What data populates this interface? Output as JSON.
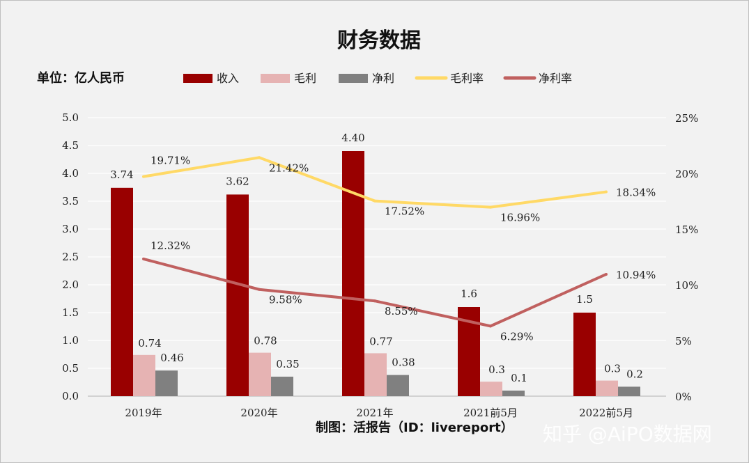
{
  "chart_data": {
    "type": "bar",
    "title": "财务数据",
    "unit_label": "单位：亿人民币",
    "source": "制图：活报告（ID：livereport）",
    "watermark": "知乎 @AiPO数据网",
    "categories": [
      "2019年",
      "2020年",
      "2021年",
      "2021前5月",
      "2022前5月"
    ],
    "y_left": {
      "range": [
        0,
        5
      ],
      "ticks": [
        "0.0",
        "0.5",
        "1.0",
        "1.5",
        "2.0",
        "2.5",
        "3.0",
        "3.5",
        "4.0",
        "4.5",
        "5.0"
      ]
    },
    "y_right": {
      "range": [
        0,
        25
      ],
      "ticks": [
        "0%",
        "5%",
        "10%",
        "15%",
        "20%",
        "25%"
      ]
    },
    "grid": true,
    "legend_position": "top",
    "series": [
      {
        "name": "收入",
        "type": "bar",
        "color": "#990000",
        "values": [
          3.74,
          3.62,
          4.4,
          1.6,
          1.5
        ],
        "labels": [
          "3.74",
          "3.62",
          "4.40",
          "1.6",
          "1.5"
        ]
      },
      {
        "name": "毛利",
        "type": "bar",
        "color": "#e6b3b3",
        "values": [
          0.74,
          0.78,
          0.77,
          0.26,
          0.28
        ],
        "labels": [
          "0.74",
          "0.78",
          "0.77",
          "0.3",
          "0.3"
        ]
      },
      {
        "name": "净利",
        "type": "bar",
        "color": "#808080",
        "values": [
          0.46,
          0.35,
          0.38,
          0.1,
          0.17
        ],
        "labels": [
          "0.46",
          "0.35",
          "0.38",
          "0.1",
          "0.2"
        ]
      },
      {
        "name": "毛利率",
        "type": "line",
        "axis": "right",
        "color": "#ffd966",
        "values": [
          19.71,
          21.42,
          17.52,
          16.96,
          18.34
        ],
        "labels": [
          "19.71%",
          "21.42%",
          "17.52%",
          "16.96%",
          "18.34%"
        ]
      },
      {
        "name": "净利率",
        "type": "line",
        "axis": "right",
        "color": "#c0605f",
        "values": [
          12.32,
          9.58,
          8.55,
          6.29,
          10.94
        ],
        "labels": [
          "12.32%",
          "9.58%",
          "8.55%",
          "6.29%",
          "10.94%"
        ]
      }
    ]
  }
}
